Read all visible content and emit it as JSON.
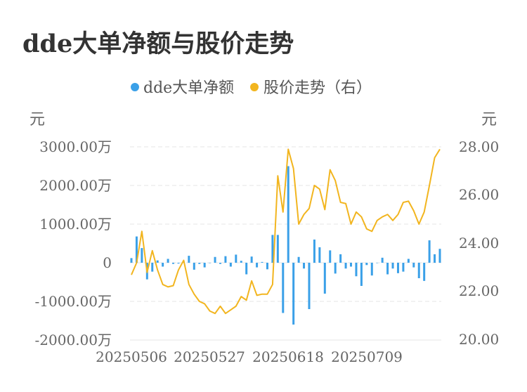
{
  "title": "dde大单净额与股价走势",
  "colors": {
    "bar": "#3aa0e8",
    "line": "#f2b51f",
    "grid": "#e6e6e6",
    "text": "#666666"
  },
  "chart_data": {
    "type": "bar+line",
    "title": "dde大单净额与股价走势",
    "legend_position": "top-center",
    "grid": true,
    "left_unit": "元",
    "right_unit": "元",
    "left_ticks": [
      "3000.00万",
      "2000.00万",
      "1000.00万",
      "0",
      "-1000.00万",
      "-2000.00万"
    ],
    "right_ticks": [
      "28.00",
      "26.00",
      "24.00",
      "22.00",
      "20.00"
    ],
    "x_ticks": [
      "20250506",
      "20250527",
      "20250618",
      "20250709"
    ],
    "ylim_left": [
      -2000,
      3000
    ],
    "ylim_right": [
      20,
      28
    ],
    "series": [
      {
        "name": "dde大单净额",
        "type": "bar",
        "axis": "left",
        "unit": "万",
        "values": [
          120,
          680,
          380,
          -430,
          -230,
          60,
          -100,
          100,
          -30,
          -20,
          30,
          180,
          -180,
          -30,
          -120,
          0,
          150,
          -30,
          170,
          -100,
          210,
          50,
          -300,
          160,
          -120,
          20,
          -170,
          720,
          720,
          -1300,
          2500,
          -1600,
          150,
          -150,
          -1200,
          600,
          400,
          -800,
          320,
          -280,
          220,
          -150,
          -100,
          -350,
          -600,
          -60,
          -330,
          0,
          130,
          -300,
          -150,
          -270,
          -230,
          100,
          -120,
          -400,
          -470,
          580,
          220,
          360
        ]
      },
      {
        "name": "股价走势（右）",
        "type": "line",
        "axis": "right",
        "values": [
          22.7,
          23.2,
          24.5,
          22.8,
          23.7,
          22.9,
          22.3,
          22.2,
          22.25,
          22.9,
          23.3,
          22.3,
          21.9,
          21.6,
          21.5,
          21.2,
          21.1,
          21.4,
          21.1,
          21.25,
          21.4,
          21.8,
          21.65,
          22.45,
          21.85,
          21.9,
          21.9,
          22.3,
          26.8,
          25.3,
          27.9,
          27.1,
          24.8,
          25.2,
          25.45,
          26.4,
          26.25,
          25.4,
          27.05,
          26.6,
          25.7,
          25.65,
          24.8,
          25.3,
          25.1,
          24.6,
          24.5,
          24.95,
          25.1,
          25.2,
          24.95,
          25.2,
          25.7,
          25.75,
          25.35,
          24.8,
          25.3,
          26.4,
          27.55,
          27.9
        ]
      }
    ]
  }
}
